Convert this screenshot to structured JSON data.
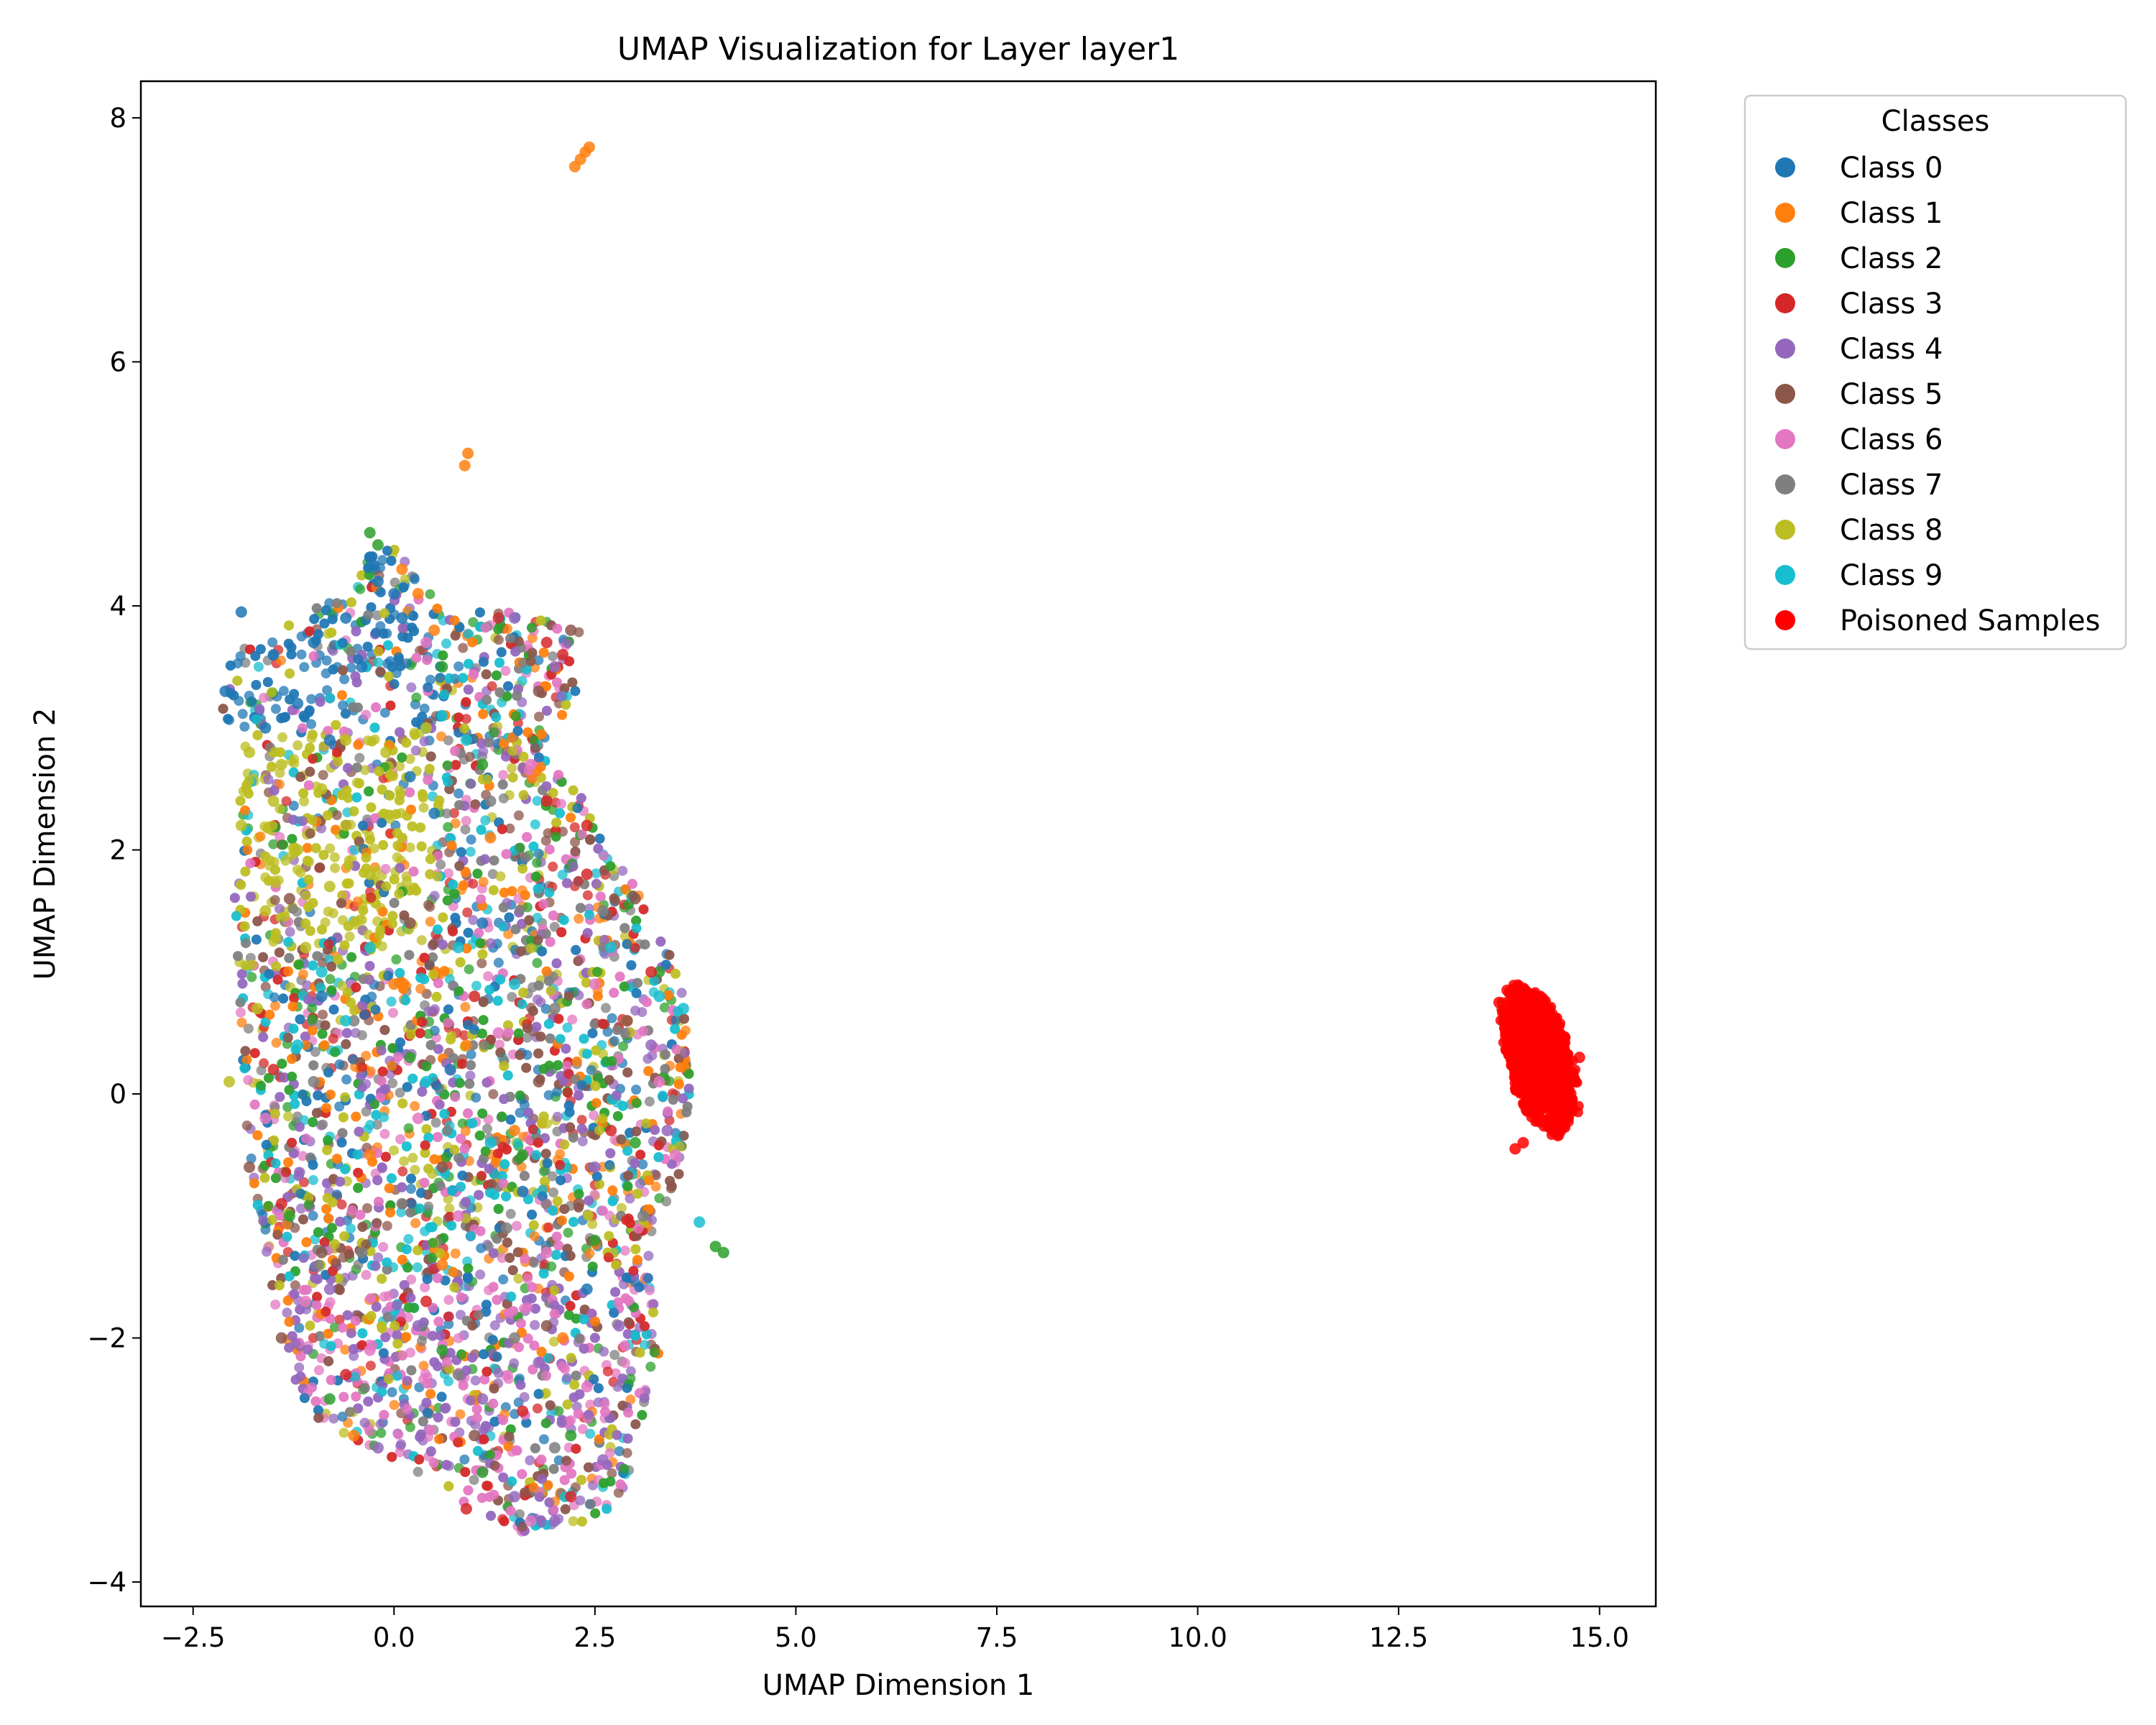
{
  "chart_data": {
    "type": "scatter",
    "title": "UMAP Visualization for Layer layer1",
    "xlabel": "UMAP Dimension 1",
    "ylabel": "UMAP Dimension 2",
    "xlim": [
      -3.15,
      15.7
    ],
    "ylim": [
      -4.2,
      8.3
    ],
    "xticks": [
      -2.5,
      0.0,
      2.5,
      5.0,
      7.5,
      10.0,
      12.5,
      15.0
    ],
    "xtick_labels": [
      "−2.5",
      "0.0",
      "2.5",
      "5.0",
      "7.5",
      "10.0",
      "12.5",
      "15.0"
    ],
    "yticks": [
      -4,
      -2,
      0,
      2,
      4,
      6,
      8
    ],
    "ytick_labels": [
      "−4",
      "−2",
      "0",
      "2",
      "4",
      "6",
      "8"
    ],
    "grid": false,
    "legend": {
      "title": "Classes",
      "placement": "outside-top-right",
      "entries": [
        {
          "name": "Class 0",
          "color": "#1f77b4"
        },
        {
          "name": "Class 1",
          "color": "#ff7f0e"
        },
        {
          "name": "Class 2",
          "color": "#2ca02c"
        },
        {
          "name": "Class 3",
          "color": "#d62728"
        },
        {
          "name": "Class 4",
          "color": "#9467bd"
        },
        {
          "name": "Class 5",
          "color": "#8c564b"
        },
        {
          "name": "Class 6",
          "color": "#e377c2"
        },
        {
          "name": "Class 7",
          "color": "#7f7f7f"
        },
        {
          "name": "Class 8",
          "color": "#bcbd22"
        },
        {
          "name": "Class 9",
          "color": "#17becf"
        },
        {
          "name": "Poisoned Samples",
          "color": "#ff0000"
        }
      ]
    },
    "series": [
      {
        "name": "Class 0",
        "color": "#1f77b4",
        "points": [
          [
            -2.1,
            3.3
          ],
          [
            -1.9,
            3.95
          ],
          [
            -1.5,
            3.6
          ],
          [
            -1.0,
            3.7
          ],
          [
            -0.6,
            3.9
          ],
          [
            -0.3,
            4.4
          ],
          [
            -0.2,
            4.2
          ],
          [
            0.1,
            3.9
          ],
          [
            -1.2,
            3.2
          ],
          [
            -0.8,
            2.9
          ],
          [
            0.2,
            2.6
          ],
          [
            0.5,
            2.3
          ],
          [
            -1.6,
            3.0
          ],
          [
            -0.4,
            3.5
          ],
          [
            0.0,
            4.1
          ],
          [
            1.1,
            1.4
          ],
          [
            0.7,
            0.2
          ],
          [
            1.6,
            -0.8
          ],
          [
            2.4,
            -1.6
          ],
          [
            -0.9,
            0.8
          ]
        ]
      },
      {
        "name": "Class 1",
        "color": "#ff7f0e",
        "points": [
          [
            2.25,
            7.6
          ],
          [
            2.32,
            7.66
          ],
          [
            2.38,
            7.72
          ],
          [
            2.43,
            7.76
          ],
          [
            0.88,
            5.15
          ],
          [
            0.92,
            5.25
          ],
          [
            0.1,
            4.3
          ],
          [
            0.3,
            4.1
          ],
          [
            0.5,
            3.8
          ],
          [
            0.0,
            0.9
          ],
          [
            0.9,
            0.4
          ],
          [
            1.5,
            -0.3
          ],
          [
            0.6,
            -1.4
          ],
          [
            2.1,
            -2.0
          ],
          [
            -0.5,
            -2.8
          ],
          [
            2.9,
            0.6
          ],
          [
            1.2,
            2.1
          ],
          [
            -0.3,
            -0.5
          ]
        ]
      },
      {
        "name": "Class 2",
        "color": "#2ca02c",
        "points": [
          [
            -0.3,
            4.6
          ],
          [
            -0.2,
            4.5
          ],
          [
            0.6,
            3.5
          ],
          [
            1.1,
            2.7
          ],
          [
            0.2,
            0.3
          ],
          [
            1.6,
            -0.5
          ],
          [
            2.5,
            -1.2
          ],
          [
            3.0,
            -0.4
          ],
          [
            1.1,
            -3.1
          ],
          [
            2.2,
            -2.8
          ],
          [
            -0.8,
            -2.5
          ],
          [
            4.0,
            -1.25
          ],
          [
            4.1,
            -1.3
          ],
          [
            3.3,
            1.0
          ],
          [
            -1.3,
            -1.0
          ],
          [
            0.6,
            -2.1
          ]
        ]
      },
      {
        "name": "Class 3",
        "color": "#d62728",
        "points": [
          [
            1.3,
            3.9
          ],
          [
            1.9,
            3.7
          ],
          [
            2.1,
            3.6
          ],
          [
            1.9,
            2.4
          ],
          [
            2.4,
            1.8
          ],
          [
            3.2,
            1.0
          ],
          [
            2.7,
            -0.3
          ],
          [
            1.0,
            0.8
          ],
          [
            -1.5,
            0.2
          ],
          [
            -1.4,
            -0.9
          ],
          [
            0.4,
            -1.7
          ],
          [
            1.6,
            -2.6
          ],
          [
            2.2,
            -3.3
          ],
          [
            -0.6,
            -2.3
          ],
          [
            0.9,
            -3.4
          ],
          [
            2.4,
            2.2
          ]
        ]
      },
      {
        "name": "Class 4",
        "color": "#9467bd",
        "points": [
          [
            1.5,
            3.9
          ],
          [
            2.0,
            3.5
          ],
          [
            3.4,
            -0.3
          ],
          [
            1.5,
            -3.3
          ],
          [
            2.0,
            -3.5
          ],
          [
            2.6,
            -3.0
          ],
          [
            1.1,
            -2.5
          ],
          [
            0.3,
            -1.9
          ],
          [
            -0.8,
            -1.6
          ],
          [
            2.8,
            -1.9
          ],
          [
            1.8,
            -2.2
          ],
          [
            3.2,
            0.4
          ],
          [
            -0.2,
            -2.9
          ],
          [
            2.5,
            -0.6
          ]
        ]
      },
      {
        "name": "Class 5",
        "color": "#8c564b",
        "points": [
          [
            2.2,
            3.8
          ],
          [
            1.8,
            3.3
          ],
          [
            3.0,
            1.6
          ],
          [
            2.9,
            0.6
          ],
          [
            1.8,
            0.1
          ],
          [
            0.2,
            1.4
          ],
          [
            -1.3,
            1.6
          ],
          [
            -0.9,
            -1.3
          ],
          [
            1.0,
            -2.8
          ],
          [
            -1.8,
            -0.6
          ],
          [
            0.6,
            -0.6
          ],
          [
            2.3,
            -0.9
          ],
          [
            -1.4,
            -2.0
          ],
          [
            1.9,
            -1.9
          ]
        ]
      },
      {
        "name": "Class 6",
        "color": "#e377c2",
        "points": [
          [
            0.4,
            3.7
          ],
          [
            1.7,
            2.7
          ],
          [
            2.5,
            0.9
          ],
          [
            3.3,
            0.1
          ],
          [
            0.8,
            -1.0
          ],
          [
            1.9,
            -1.3
          ],
          [
            2.4,
            -2.4
          ],
          [
            1.7,
            -3.5
          ],
          [
            -0.3,
            -2.1
          ],
          [
            -1.1,
            -1.7
          ],
          [
            0.3,
            -0.2
          ],
          [
            -1.6,
            -0.2
          ],
          [
            3.5,
            -0.5
          ],
          [
            1.3,
            0.5
          ]
        ]
      },
      {
        "name": "Class 7",
        "color": "#7f7f7f",
        "points": [
          [
            1.2,
            2.4
          ],
          [
            2.6,
            1.5
          ],
          [
            3.1,
            -1.0
          ],
          [
            1.4,
            -1.1
          ],
          [
            0.1,
            -0.9
          ],
          [
            -0.4,
            -1.3
          ],
          [
            0.8,
            -2.3
          ],
          [
            2.0,
            -2.9
          ],
          [
            -0.5,
            0.6
          ],
          [
            -1.0,
            0.1
          ],
          [
            2.0,
            0.7
          ],
          [
            1.5,
            -2.0
          ]
        ]
      },
      {
        "name": "Class 8",
        "color": "#bcbd22",
        "points": [
          [
            -2.05,
            0.1
          ],
          [
            -1.8,
            2.8
          ],
          [
            -1.5,
            2.4
          ],
          [
            -1.2,
            2.0
          ],
          [
            -0.9,
            2.5
          ],
          [
            -0.6,
            2.2
          ],
          [
            -0.3,
            1.8
          ],
          [
            -1.6,
            1.5
          ],
          [
            -1.9,
            2.2
          ],
          [
            -0.1,
            2.8
          ],
          [
            0.4,
            3.0
          ],
          [
            -1.1,
            1.2
          ],
          [
            -1.7,
            0.7
          ],
          [
            -0.6,
            2.9
          ],
          [
            -1.4,
            2.7
          ],
          [
            -0.8,
            1.7
          ]
        ]
      },
      {
        "name": "Class 9",
        "color": "#17becf",
        "points": [
          [
            0.6,
            3.1
          ],
          [
            0.9,
            2.9
          ],
          [
            3.8,
            -1.05
          ],
          [
            3.3,
            0.8
          ],
          [
            3.6,
            0.7
          ],
          [
            -0.9,
            1.0
          ],
          [
            -0.6,
            0.6
          ],
          [
            -1.2,
            0.4
          ],
          [
            0.8,
            1.2
          ],
          [
            1.5,
            0.9
          ],
          [
            0.4,
            0.1
          ],
          [
            1.2,
            -0.4
          ],
          [
            -0.3,
            1.2
          ],
          [
            2.7,
            1.2
          ]
        ]
      },
      {
        "name": "Poisoned Samples",
        "color": "#ff0000",
        "points": [
          [
            13.75,
            0.75
          ],
          [
            13.85,
            0.85
          ],
          [
            13.9,
            0.6
          ],
          [
            14.0,
            0.75
          ],
          [
            14.1,
            0.5
          ],
          [
            14.2,
            0.7
          ],
          [
            14.3,
            0.55
          ],
          [
            14.4,
            0.45
          ],
          [
            14.25,
            0.3
          ],
          [
            14.1,
            0.2
          ],
          [
            14.35,
            0.15
          ],
          [
            14.5,
            0.25
          ],
          [
            14.55,
            0.0
          ],
          [
            14.4,
            -0.1
          ],
          [
            14.6,
            -0.2
          ],
          [
            14.7,
            0.1
          ],
          [
            14.75,
            0.3
          ],
          [
            14.65,
            -0.05
          ],
          [
            14.2,
            0.0
          ],
          [
            14.5,
            0.35
          ],
          [
            13.95,
            -0.45
          ],
          [
            14.05,
            -0.4
          ]
        ]
      }
    ]
  }
}
